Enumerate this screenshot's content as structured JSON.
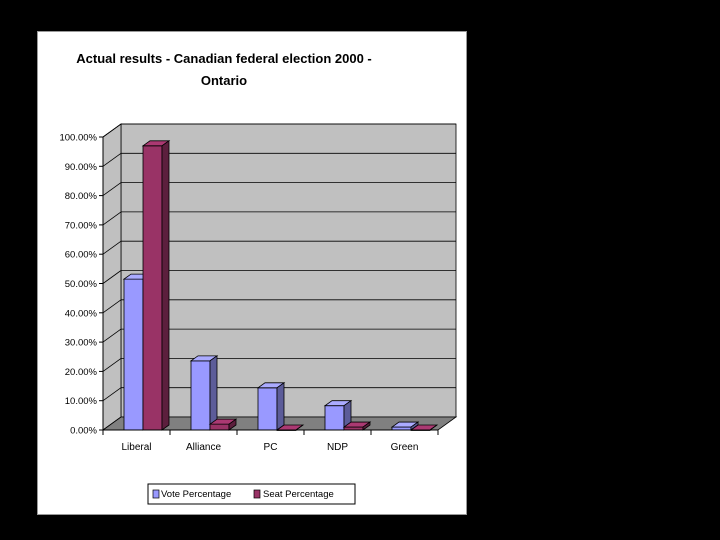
{
  "chart_data": {
    "type": "bar",
    "title_lines": [
      "Actual results - Canadian federal election 2000 -",
      "Ontario"
    ],
    "categories": [
      "Liberal",
      "Alliance",
      "PC",
      "NDP",
      "Green"
    ],
    "series": [
      {
        "name": "Vote Percentage",
        "values": [
          51.5,
          23.6,
          14.4,
          8.3,
          1.0
        ],
        "color": "#9999ff"
      },
      {
        "name": "Seat Percentage",
        "values": [
          97.0,
          2.0,
          0.0,
          1.0,
          0.0
        ],
        "color": "#993366"
      }
    ],
    "ylim": [
      0,
      100
    ],
    "yticks": [
      0,
      10,
      20,
      30,
      40,
      50,
      60,
      70,
      80,
      90,
      100
    ],
    "ytick_labels": [
      "0.00%",
      "10.00%",
      "20.00%",
      "30.00%",
      "40.00%",
      "50.00%",
      "60.00%",
      "70.00%",
      "80.00%",
      "90.00%",
      "100.00%"
    ],
    "grid": true,
    "legend_position": "bottom",
    "wall_color": "#c0c0c0",
    "floor_color": "#808080"
  }
}
